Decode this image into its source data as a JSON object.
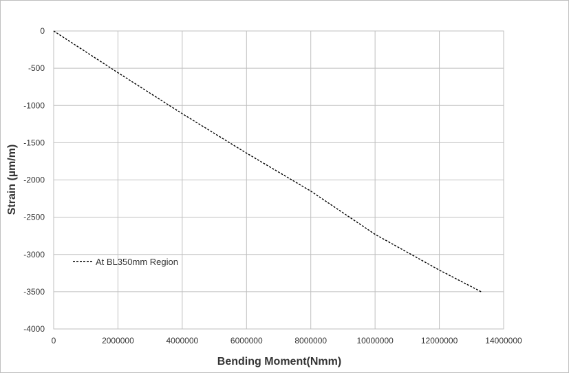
{
  "chart_data": {
    "type": "line",
    "title": "",
    "xlabel": "Bending Moment(Nmm)",
    "ylabel": "Strain (µm/m)",
    "xlim": [
      0,
      14000000
    ],
    "ylim": [
      -4000,
      0
    ],
    "xticks": [
      0,
      2000000,
      4000000,
      6000000,
      8000000,
      10000000,
      12000000,
      14000000
    ],
    "xtick_labels": [
      "0",
      "2000000",
      "4000000",
      "6000000",
      "8000000",
      "10000000",
      "12000000",
      "14000000"
    ],
    "yticks": [
      0,
      -500,
      -1000,
      -1500,
      -2000,
      -2500,
      -3000,
      -3500,
      -4000
    ],
    "ytick_labels": [
      "0",
      "-500",
      "-1000",
      "-1500",
      "-2000",
      "-2500",
      "-3000",
      "-3500",
      "-4000"
    ],
    "grid": true,
    "legend_position": "bottom-left",
    "series": [
      {
        "name": "At BL350mm Region",
        "line_style": "dashed",
        "color": "#000000",
        "x": [
          0,
          2000000,
          4000000,
          6000000,
          8000000,
          10000000,
          10500000,
          12000000,
          13300000
        ],
        "y": [
          0,
          -560,
          -1110,
          -1640,
          -2150,
          -2730,
          -2850,
          -3210,
          -3500
        ]
      }
    ]
  }
}
